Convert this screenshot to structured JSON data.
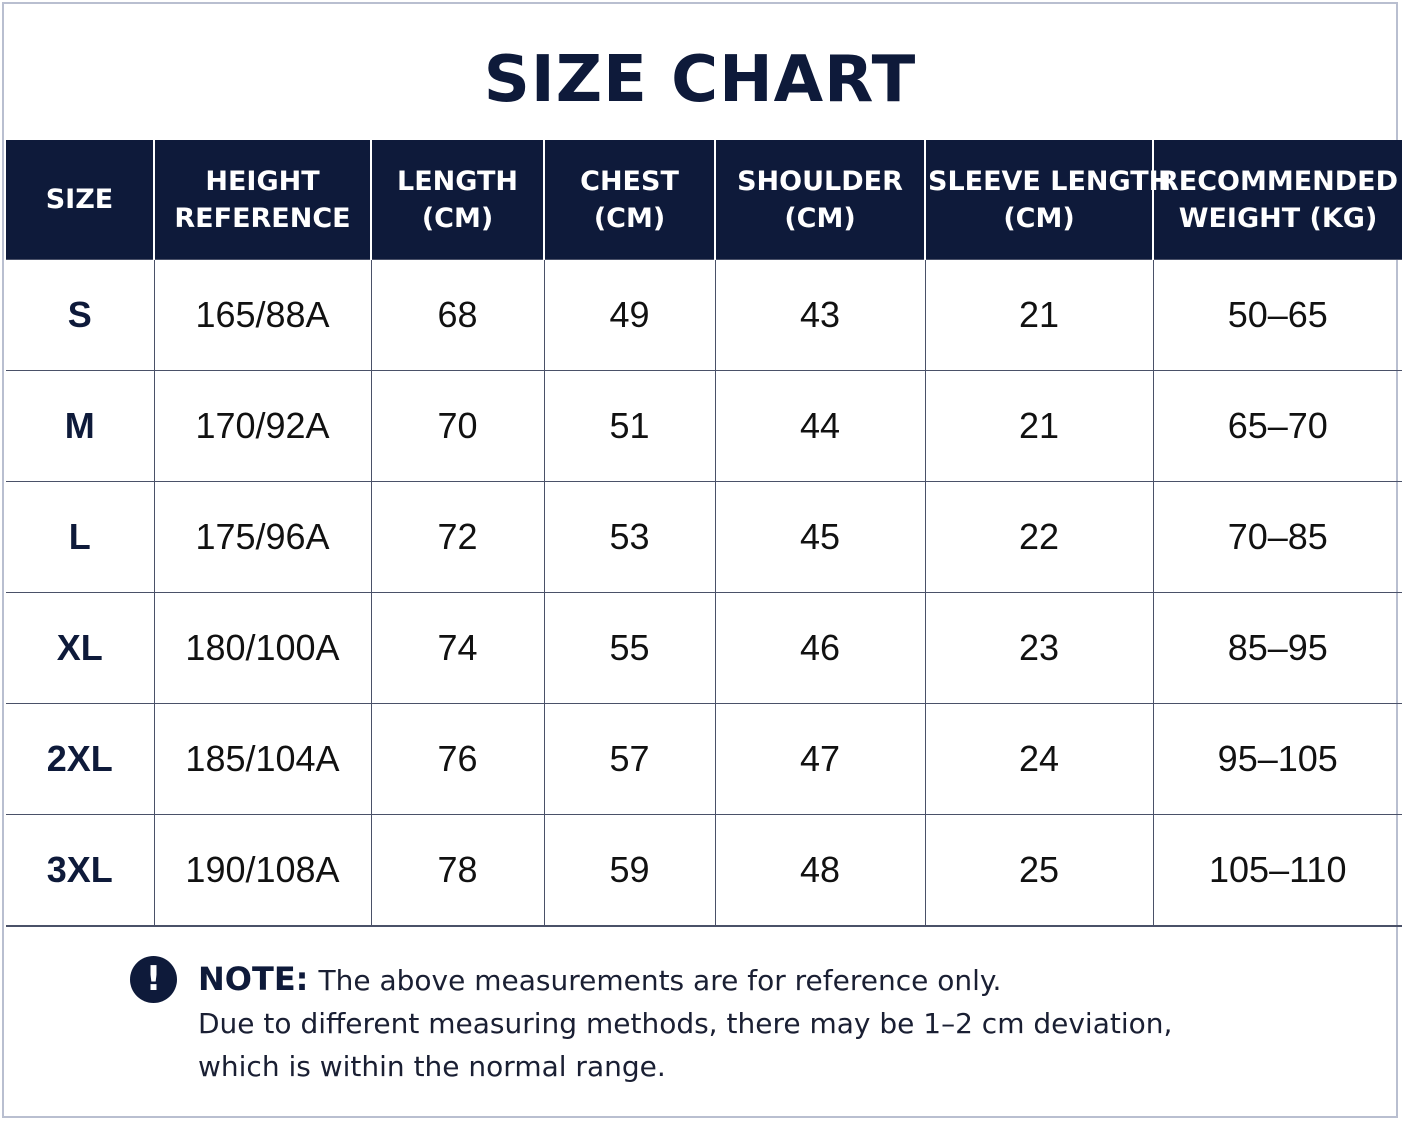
{
  "title": "SIZE CHART",
  "colors": {
    "header_bg": "#0e1a3a",
    "header_text": "#ffffff",
    "border": "#4a5168"
  },
  "table": {
    "columns": [
      [
        "SIZE"
      ],
      [
        "HEIGHT",
        "REFERENCE"
      ],
      [
        "LENGTH",
        "(CM)"
      ],
      [
        "CHEST",
        "(CM)"
      ],
      [
        "SHOULDER",
        "(CM)"
      ],
      [
        "SLEEVE LENGTH",
        "(CM)"
      ],
      [
        "RECOMMENDED",
        "WEIGHT (KG)"
      ]
    ],
    "rows": [
      [
        "S",
        "165/88A",
        "68",
        "49",
        "43",
        "21",
        "50–65"
      ],
      [
        "M",
        "170/92A",
        "70",
        "51",
        "44",
        "21",
        "65–70"
      ],
      [
        "L",
        "175/96A",
        "72",
        "53",
        "45",
        "22",
        "70–85"
      ],
      [
        "XL",
        "180/100A",
        "74",
        "55",
        "46",
        "23",
        "85–95"
      ],
      [
        "2XL",
        "185/104A",
        "76",
        "57",
        "47",
        "24",
        "95–105"
      ],
      [
        "3XL",
        "190/108A",
        "78",
        "59",
        "48",
        "25",
        "105–110"
      ]
    ]
  },
  "note": {
    "icon": "exclamation-circle-icon",
    "icon_glyph": "!",
    "label": "NOTE:",
    "lines": [
      "The above measurements are for reference only.",
      "Due to different measuring methods, there may be 1–2 cm deviation,",
      "which is within the normal range."
    ]
  }
}
